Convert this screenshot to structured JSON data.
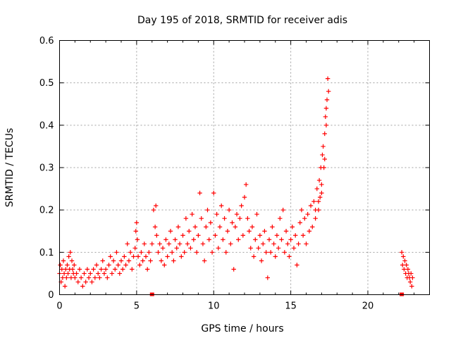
{
  "chart_data": {
    "type": "scatter",
    "title": "Day 195 of 2018, SRMTID for receiver adis",
    "xlabel": "GPS time / hours",
    "ylabel": "SRMTID / TECUs",
    "xlim": [
      0,
      24
    ],
    "ylim": [
      0,
      0.6
    ],
    "grid": true,
    "xticks": [
      0,
      5,
      10,
      15,
      20
    ],
    "yticks": [
      0,
      0.1,
      0.2,
      0.3,
      0.4,
      0.5,
      0.6
    ],
    "xtick_labels": [
      "0",
      "5",
      "10",
      "15",
      "20"
    ],
    "ytick_labels": [
      "0",
      "0.1",
      "0.2",
      "0.3",
      "0.4",
      "0.5",
      "0.6"
    ],
    "marker": "+",
    "color": "#ff0000",
    "series": [
      {
        "name": "SRMTID",
        "points": [
          [
            0.0,
            0.05
          ],
          [
            0.05,
            0.07
          ],
          [
            0.1,
            0.03
          ],
          [
            0.15,
            0.06
          ],
          [
            0.2,
            0.04
          ],
          [
            0.25,
            0.08
          ],
          [
            0.3,
            0.05
          ],
          [
            0.35,
            0.02
          ],
          [
            0.4,
            0.06
          ],
          [
            0.45,
            0.04
          ],
          [
            0.5,
            0.07
          ],
          [
            0.55,
            0.05
          ],
          [
            0.6,
            0.09
          ],
          [
            0.65,
            0.06
          ],
          [
            0.7,
            0.1
          ],
          [
            0.75,
            0.04
          ],
          [
            0.8,
            0.08
          ],
          [
            0.85,
            0.06
          ],
          [
            0.9,
            0.05
          ],
          [
            0.95,
            0.07
          ],
          [
            1.0,
            0.04
          ],
          [
            1.1,
            0.05
          ],
          [
            1.2,
            0.03
          ],
          [
            1.3,
            0.06
          ],
          [
            1.4,
            0.04
          ],
          [
            1.5,
            0.02
          ],
          [
            1.6,
            0.05
          ],
          [
            1.7,
            0.03
          ],
          [
            1.8,
            0.06
          ],
          [
            1.9,
            0.04
          ],
          [
            2.0,
            0.05
          ],
          [
            2.1,
            0.03
          ],
          [
            2.2,
            0.06
          ],
          [
            2.3,
            0.04
          ],
          [
            2.4,
            0.07
          ],
          [
            2.5,
            0.05
          ],
          [
            2.6,
            0.04
          ],
          [
            2.7,
            0.06
          ],
          [
            2.8,
            0.08
          ],
          [
            2.9,
            0.05
          ],
          [
            3.0,
            0.06
          ],
          [
            3.1,
            0.04
          ],
          [
            3.2,
            0.07
          ],
          [
            3.3,
            0.09
          ],
          [
            3.4,
            0.05
          ],
          [
            3.5,
            0.08
          ],
          [
            3.6,
            0.06
          ],
          [
            3.7,
            0.1
          ],
          [
            3.8,
            0.07
          ],
          [
            3.9,
            0.05
          ],
          [
            4.0,
            0.08
          ],
          [
            4.1,
            0.06
          ],
          [
            4.2,
            0.09
          ],
          [
            4.3,
            0.07
          ],
          [
            4.4,
            0.12
          ],
          [
            4.5,
            0.08
          ],
          [
            4.6,
            0.1
          ],
          [
            4.7,
            0.06
          ],
          [
            4.8,
            0.09
          ],
          [
            4.9,
            0.11
          ],
          [
            4.95,
            0.15
          ],
          [
            5.0,
            0.17
          ],
          [
            5.05,
            0.13
          ],
          [
            5.1,
            0.09
          ],
          [
            5.2,
            0.07
          ],
          [
            5.3,
            0.1
          ],
          [
            5.4,
            0.08
          ],
          [
            5.5,
            0.12
          ],
          [
            5.6,
            0.09
          ],
          [
            5.7,
            0.06
          ],
          [
            5.8,
            0.1
          ],
          [
            5.9,
            0.08
          ],
          [
            6.0,
            0.12
          ],
          [
            6.1,
            0.2
          ],
          [
            6.2,
            0.16
          ],
          [
            6.25,
            0.21
          ],
          [
            6.3,
            0.14
          ],
          [
            6.4,
            0.1
          ],
          [
            6.5,
            0.12
          ],
          [
            6.6,
            0.08
          ],
          [
            6.7,
            0.11
          ],
          [
            6.8,
            0.07
          ],
          [
            6.9,
            0.13
          ],
          [
            7.0,
            0.09
          ],
          [
            7.1,
            0.12
          ],
          [
            7.2,
            0.15
          ],
          [
            7.3,
            0.1
          ],
          [
            7.4,
            0.08
          ],
          [
            7.5,
            0.13
          ],
          [
            7.6,
            0.11
          ],
          [
            7.7,
            0.16
          ],
          [
            7.8,
            0.12
          ],
          [
            7.9,
            0.09
          ],
          [
            8.0,
            0.14
          ],
          [
            8.1,
            0.1
          ],
          [
            8.2,
            0.18
          ],
          [
            8.3,
            0.12
          ],
          [
            8.4,
            0.15
          ],
          [
            8.5,
            0.11
          ],
          [
            8.6,
            0.19
          ],
          [
            8.7,
            0.13
          ],
          [
            8.8,
            0.16
          ],
          [
            8.9,
            0.1
          ],
          [
            9.0,
            0.14
          ],
          [
            9.1,
            0.24
          ],
          [
            9.2,
            0.18
          ],
          [
            9.3,
            0.12
          ],
          [
            9.4,
            0.08
          ],
          [
            9.5,
            0.16
          ],
          [
            9.6,
            0.2
          ],
          [
            9.7,
            0.13
          ],
          [
            9.8,
            0.17
          ],
          [
            9.9,
            0.1
          ],
          [
            10.0,
            0.24
          ],
          [
            10.1,
            0.14
          ],
          [
            10.2,
            0.19
          ],
          [
            10.3,
            0.11
          ],
          [
            10.4,
            0.16
          ],
          [
            10.5,
            0.21
          ],
          [
            10.6,
            0.13
          ],
          [
            10.7,
            0.18
          ],
          [
            10.8,
            0.1
          ],
          [
            10.9,
            0.15
          ],
          [
            11.0,
            0.2
          ],
          [
            11.1,
            0.12
          ],
          [
            11.2,
            0.17
          ],
          [
            11.3,
            0.06
          ],
          [
            11.4,
            0.16
          ],
          [
            11.5,
            0.19
          ],
          [
            11.6,
            0.13
          ],
          [
            11.7,
            0.18
          ],
          [
            11.8,
            0.21
          ],
          [
            11.9,
            0.14
          ],
          [
            12.0,
            0.23
          ],
          [
            12.1,
            0.26
          ],
          [
            12.2,
            0.18
          ],
          [
            12.3,
            0.15
          ],
          [
            12.4,
            0.11
          ],
          [
            12.5,
            0.16
          ],
          [
            12.6,
            0.09
          ],
          [
            12.7,
            0.13
          ],
          [
            12.8,
            0.19
          ],
          [
            12.9,
            0.11
          ],
          [
            13.0,
            0.14
          ],
          [
            13.1,
            0.08
          ],
          [
            13.2,
            0.12
          ],
          [
            13.3,
            0.15
          ],
          [
            13.4,
            0.1
          ],
          [
            13.5,
            0.04
          ],
          [
            13.6,
            0.13
          ],
          [
            13.7,
            0.1
          ],
          [
            13.8,
            0.16
          ],
          [
            13.9,
            0.12
          ],
          [
            14.0,
            0.09
          ],
          [
            14.1,
            0.14
          ],
          [
            14.2,
            0.11
          ],
          [
            14.3,
            0.18
          ],
          [
            14.4,
            0.13
          ],
          [
            14.5,
            0.2
          ],
          [
            14.6,
            0.1
          ],
          [
            14.7,
            0.15
          ],
          [
            14.8,
            0.12
          ],
          [
            14.9,
            0.09
          ],
          [
            15.0,
            0.13
          ],
          [
            15.1,
            0.16
          ],
          [
            15.2,
            0.11
          ],
          [
            15.3,
            0.14
          ],
          [
            15.4,
            0.07
          ],
          [
            15.5,
            0.12
          ],
          [
            15.6,
            0.17
          ],
          [
            15.7,
            0.2
          ],
          [
            15.8,
            0.14
          ],
          [
            15.9,
            0.18
          ],
          [
            16.0,
            0.12
          ],
          [
            16.1,
            0.19
          ],
          [
            16.2,
            0.15
          ],
          [
            16.3,
            0.21
          ],
          [
            16.4,
            0.16
          ],
          [
            16.5,
            0.22
          ],
          [
            16.6,
            0.18
          ],
          [
            16.7,
            0.25
          ],
          [
            16.8,
            0.2
          ],
          [
            16.85,
            0.27
          ],
          [
            16.9,
            0.23
          ],
          [
            16.95,
            0.3
          ],
          [
            17.0,
            0.26
          ],
          [
            17.05,
            0.33
          ],
          [
            17.1,
            0.35
          ],
          [
            17.15,
            0.3
          ],
          [
            17.2,
            0.38
          ],
          [
            17.25,
            0.42
          ],
          [
            17.3,
            0.4
          ],
          [
            17.35,
            0.46
          ],
          [
            17.4,
            0.51
          ],
          [
            17.45,
            0.48
          ],
          [
            17.3,
            0.44
          ],
          [
            17.2,
            0.32
          ],
          [
            17.0,
            0.24
          ],
          [
            16.8,
            0.22
          ],
          [
            16.6,
            0.2
          ],
          [
            22.2,
            0.1
          ],
          [
            22.25,
            0.07
          ],
          [
            22.3,
            0.09
          ],
          [
            22.35,
            0.06
          ],
          [
            22.4,
            0.08
          ],
          [
            22.45,
            0.05
          ],
          [
            22.5,
            0.07
          ],
          [
            22.55,
            0.04
          ],
          [
            22.6,
            0.06
          ],
          [
            22.65,
            0.05
          ],
          [
            22.7,
            0.04
          ],
          [
            22.75,
            0.03
          ],
          [
            22.8,
            0.05
          ],
          [
            22.85,
            0.02
          ],
          [
            22.9,
            0.04
          ]
        ]
      }
    ],
    "zero_markers": [
      6.0,
      22.2
    ]
  }
}
